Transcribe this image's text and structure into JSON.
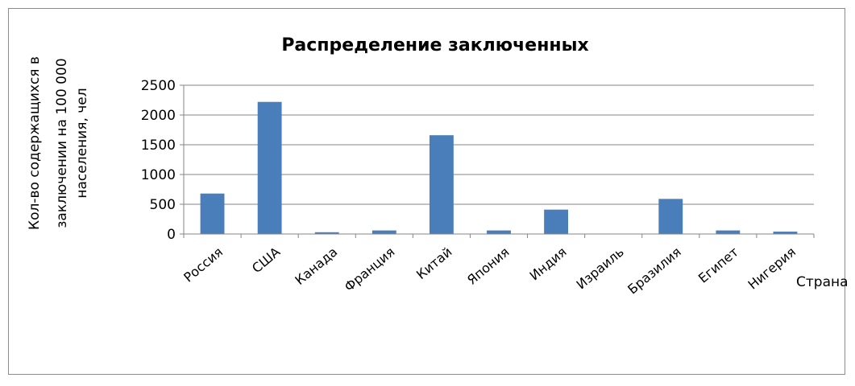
{
  "chart_data": {
    "type": "bar",
    "title": "Распределение заключенных",
    "xlabel": "Страна",
    "ylabel_lines": [
      "Кол-во содержащихся в",
      "заключении на 100 000",
      "населения, чел"
    ],
    "categories": [
      "Россия",
      "США",
      "Канада",
      "Франция",
      "Китай",
      "Япония",
      "Индия",
      "Израиль",
      "Бразилия",
      "Египет",
      "Нигерия"
    ],
    "values": [
      680,
      2220,
      30,
      60,
      1660,
      60,
      410,
      0,
      590,
      60,
      40
    ],
    "ylim": [
      0,
      2500
    ],
    "yticks": [
      "0",
      "500",
      "1000",
      "1500",
      "2000",
      "2500"
    ],
    "ytick_values": [
      0,
      500,
      1000,
      1500,
      2000,
      2500
    ],
    "grid": true,
    "bar_color": "#4a7ebb",
    "grid_color": "#868686"
  }
}
